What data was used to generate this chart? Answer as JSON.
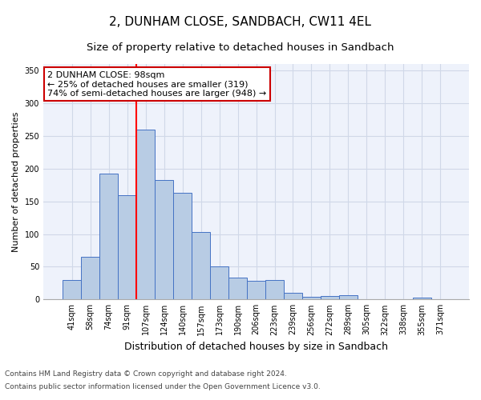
{
  "title": "2, DUNHAM CLOSE, SANDBACH, CW11 4EL",
  "subtitle": "Size of property relative to detached houses in Sandbach",
  "xlabel": "Distribution of detached houses by size in Sandbach",
  "ylabel": "Number of detached properties",
  "categories": [
    "41sqm",
    "58sqm",
    "74sqm",
    "91sqm",
    "107sqm",
    "124sqm",
    "140sqm",
    "157sqm",
    "173sqm",
    "190sqm",
    "206sqm",
    "223sqm",
    "239sqm",
    "256sqm",
    "272sqm",
    "289sqm",
    "305sqm",
    "322sqm",
    "338sqm",
    "355sqm",
    "371sqm"
  ],
  "values": [
    30,
    65,
    193,
    160,
    260,
    183,
    163,
    103,
    50,
    33,
    28,
    30,
    10,
    4,
    5,
    6,
    0,
    0,
    0,
    3,
    0
  ],
  "bar_color": "#b8cce4",
  "bar_edge_color": "#4472c4",
  "red_line_x": 3.5,
  "annotation_text": "2 DUNHAM CLOSE: 98sqm\n← 25% of detached houses are smaller (319)\n74% of semi-detached houses are larger (948) →",
  "annotation_box_color": "#ffffff",
  "annotation_box_edge_color": "#cc0000",
  "ylim": [
    0,
    360
  ],
  "yticks": [
    0,
    50,
    100,
    150,
    200,
    250,
    300,
    350
  ],
  "grid_color": "#d0d8e8",
  "background_color": "#eef2fb",
  "footer_line1": "Contains HM Land Registry data © Crown copyright and database right 2024.",
  "footer_line2": "Contains public sector information licensed under the Open Government Licence v3.0.",
  "title_fontsize": 11,
  "subtitle_fontsize": 9.5,
  "xlabel_fontsize": 9,
  "ylabel_fontsize": 8,
  "tick_fontsize": 7,
  "annotation_fontsize": 8,
  "footer_fontsize": 6.5
}
